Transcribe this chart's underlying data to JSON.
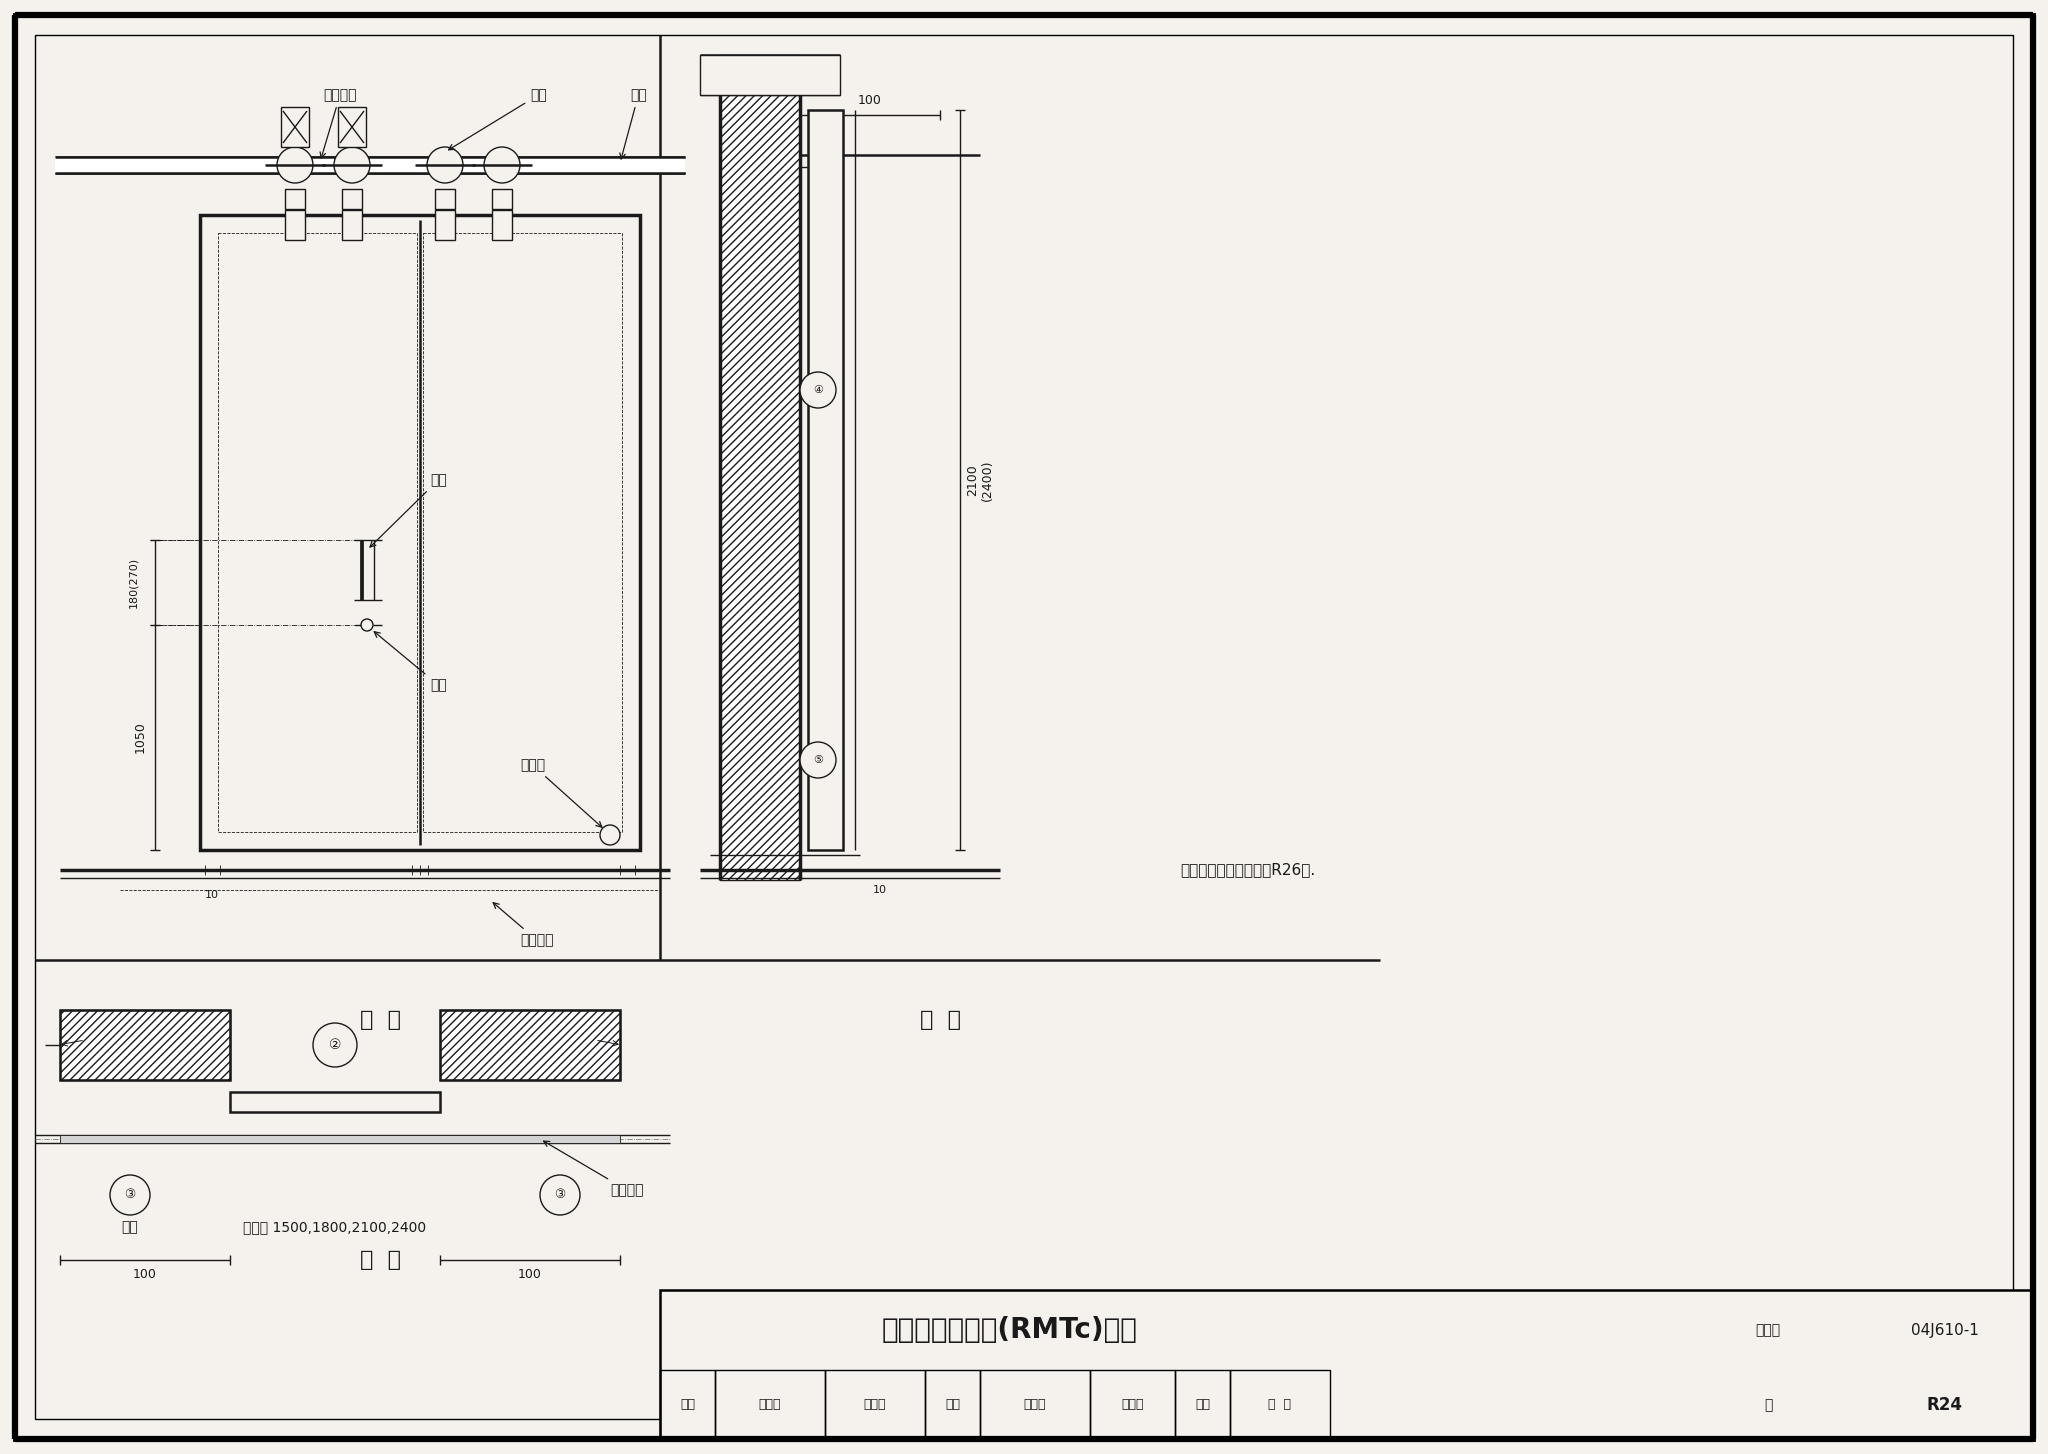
{
  "title": "钢质双扇推拉门(RMTc)详图",
  "title_code": "04J610-1",
  "page_num": "R24",
  "view_front": "立  面",
  "view_section": "剖  面",
  "view_plan": "平  面",
  "label_travel_switch": "行程开关",
  "label_walk_wheel": "走轮",
  "label_guide_rail": "导轨",
  "label_pull_handle": "拉手",
  "label_push_handle": "搡手",
  "label_block_wheel": "阻偏轮",
  "label_block_groove": "阻偏轮沟",
  "label_reverse": "反向",
  "label_door_width": "门洞宽 1500,1800,2100,2400",
  "label_dim_180": "180(270)",
  "label_dim_1050": "1050",
  "label_dim_2100": "2100\n(2400)",
  "note_text": "注：阻偏轮沟详图详见R26页.",
  "bg_color": "#f5f2ed",
  "line_color": "#1a1a1a"
}
